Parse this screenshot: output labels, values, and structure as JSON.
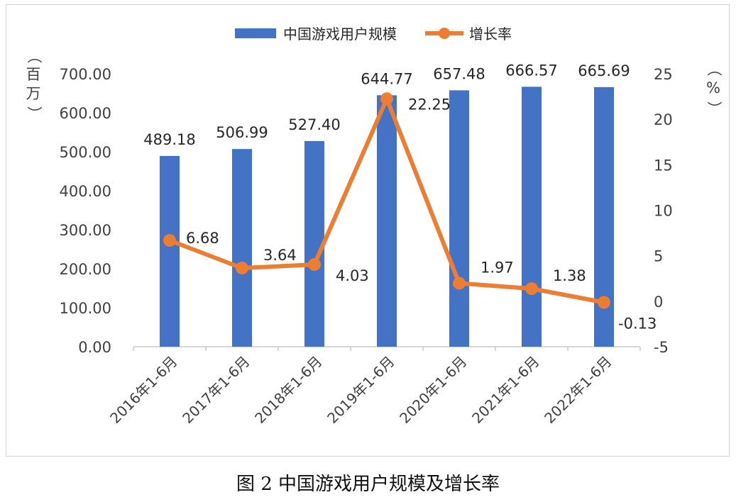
{
  "chart_data": {
    "type": "bar",
    "categories": [
      "2016年1-6月",
      "2017年1-6月",
      "2018年1-6月",
      "2019年1-6月",
      "2020年1-6月",
      "2021年1-6月",
      "2022年1-6月"
    ],
    "series": [
      {
        "name": "中国游戏用户规模",
        "type": "bar",
        "axis": "left",
        "color": "#4472c4",
        "values": [
          489.18,
          506.99,
          527.4,
          644.77,
          657.48,
          666.57,
          665.69
        ],
        "labels": [
          "489.18",
          "506.99",
          "527.40",
          "644.77",
          "657.48",
          "666.57",
          "665.69"
        ]
      },
      {
        "name": "增长率",
        "type": "line",
        "axis": "right",
        "color": "#ed7d31",
        "values": [
          6.68,
          3.64,
          4.03,
          22.25,
          1.97,
          1.38,
          -0.13
        ],
        "labels": [
          "6.68",
          "3.64",
          "4.03",
          "22.25",
          "1.97",
          "1.38",
          "-0.13"
        ]
      }
    ],
    "y_left": {
      "label": [
        "（",
        "百",
        "万",
        "）"
      ],
      "ylim": [
        0,
        700
      ],
      "ticks": [
        "0.00",
        "100.00",
        "200.00",
        "300.00",
        "400.00",
        "500.00",
        "600.00",
        "700.00"
      ]
    },
    "y_right": {
      "label": [
        "（",
        "%",
        "）"
      ],
      "ylim": [
        -5,
        25
      ],
      "ticks": [
        "-5",
        "0",
        "5",
        "10",
        "15",
        "20",
        "25"
      ]
    },
    "legend": "top-center",
    "grid": false
  },
  "caption": {
    "fig": "图",
    "num": "2",
    "text": "中国游戏用户规模及增长率"
  }
}
